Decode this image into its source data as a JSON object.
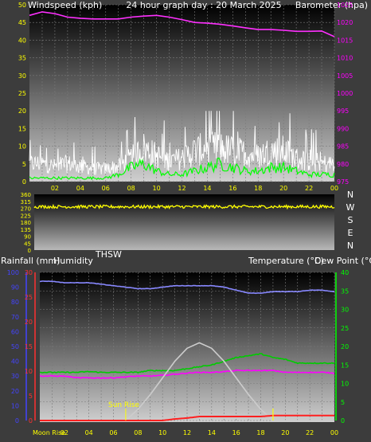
{
  "chart_data": [
    {
      "type": "line",
      "title": "24 hour graph day : 20 March 2025",
      "ylabel": "Windspeed (kph)",
      "y2label": "Barometer (hpa)",
      "ylim": [
        0,
        50
      ],
      "y2lim": [
        975,
        1025
      ],
      "grid": true,
      "x_ticks": [
        "02",
        "04",
        "06",
        "08",
        "10",
        "12",
        "14",
        "16",
        "18",
        "20",
        "22",
        "00"
      ],
      "y_ticks": [
        0,
        5,
        10,
        15,
        20,
        25,
        30,
        35,
        40,
        45,
        50
      ],
      "y2_ticks": [
        975,
        980,
        985,
        990,
        995,
        1000,
        1005,
        1010,
        1015,
        1020,
        1025
      ],
      "hours": [
        0,
        1,
        2,
        3,
        4,
        5,
        6,
        7,
        8,
        9,
        10,
        11,
        12,
        13,
        14,
        15,
        16,
        17,
        18,
        19,
        20,
        21,
        22,
        23,
        24
      ],
      "series": [
        {
          "role": "barometer",
          "color": "#ff30ff",
          "axis": "right",
          "values": [
            1022,
            1023,
            1022.5,
            1021.5,
            1021.2,
            1021,
            1021,
            1021,
            1021.5,
            1021.8,
            1022,
            1021.5,
            1020.8,
            1020,
            1019.8,
            1019.5,
            1019,
            1018.5,
            1018,
            1018,
            1017.8,
            1017.5,
            1017.5,
            1017.6,
            1016
          ]
        },
        {
          "role": "gust",
          "color": "#ffffff",
          "axis": "left",
          "values": [
            7,
            7,
            6,
            7,
            6,
            5,
            5,
            6,
            9,
            13,
            10,
            8,
            9,
            12,
            13,
            13,
            12,
            11,
            10,
            12,
            12,
            9,
            8,
            7,
            7
          ],
          "spike_max": 20
        },
        {
          "role": "average",
          "color": "#00ff00",
          "axis": "left",
          "values": [
            1,
            1,
            1,
            1,
            1,
            1,
            1,
            2,
            4,
            5,
            3,
            2,
            2,
            3,
            4,
            5,
            4,
            3,
            3,
            4,
            4,
            3,
            2,
            2,
            2
          ]
        }
      ]
    },
    {
      "type": "line",
      "ylim": [
        0,
        360
      ],
      "y_ticks": [
        0,
        45,
        90,
        135,
        180,
        225,
        270,
        315,
        360
      ],
      "compass_labels": [
        "N",
        "W",
        "S",
        "E",
        "N"
      ],
      "series": [
        {
          "role": "wind-direction",
          "color": "#ffff00",
          "base_value": 280,
          "jitter": 20
        }
      ]
    },
    {
      "type": "line",
      "ylabel_left_outer": "Rainfall (mm)",
      "ylabel_left_inner": "Humidity",
      "series_label_thsw": "THSW",
      "ylabel_right_outer": "Temperature (°C)",
      "ylabel_right_inner": "Dew Point (°C)",
      "grid": true,
      "x_ticks": [
        "02",
        "04",
        "06",
        "08",
        "10",
        "12",
        "14",
        "16",
        "18",
        "20",
        "22",
        "00"
      ],
      "humidity_lim": [
        0,
        100
      ],
      "humidity_ticks": [
        0,
        10,
        20,
        30,
        40,
        50,
        60,
        70,
        80,
        90,
        100
      ],
      "rain_lim": [
        0,
        30
      ],
      "rain_ticks": [
        0,
        5,
        10,
        15,
        20,
        25,
        30
      ],
      "temp_lim": [
        0,
        40
      ],
      "temp_ticks": [
        0,
        5,
        10,
        15,
        20,
        25,
        30,
        35,
        40
      ],
      "annotations": {
        "sunrise": "Sun Rise",
        "moonrise": "Moon Rise"
      },
      "sunrise_hour": 7,
      "sunset_hour": 19,
      "hours": [
        0,
        1,
        2,
        3,
        4,
        5,
        6,
        7,
        8,
        9,
        10,
        11,
        12,
        13,
        14,
        15,
        16,
        17,
        18,
        19,
        20,
        21,
        22,
        23,
        24
      ],
      "series": [
        {
          "role": "humidity",
          "color": "#8888ff",
          "axis": "humidity",
          "values": [
            94,
            94,
            93,
            93,
            93,
            92,
            91,
            90,
            89,
            89,
            90,
            91,
            91,
            91,
            91,
            90,
            88,
            86,
            86,
            87,
            87,
            87,
            88,
            88,
            87
          ]
        },
        {
          "role": "temperature",
          "color": "#00cc00",
          "axis": "temp",
          "values": [
            13,
            13,
            13,
            13,
            13.2,
            13,
            13,
            13,
            13,
            13.5,
            13.5,
            13.5,
            14,
            14.5,
            15,
            16,
            17,
            17.5,
            18,
            17,
            16.5,
            15.5,
            15.5,
            15.5,
            15.5
          ]
        },
        {
          "role": "dew-point",
          "color": "#ff00ff",
          "axis": "temp",
          "values": [
            12,
            12,
            12,
            11.5,
            11.5,
            11.5,
            11.5,
            11.8,
            12,
            12,
            12.2,
            12.5,
            12.8,
            13,
            13,
            13.2,
            13.5,
            13.5,
            13.5,
            13.5,
            13,
            13,
            13,
            13,
            12.8
          ]
        },
        {
          "role": "solar",
          "color": "#cccccc",
          "axis": "temp",
          "values": [
            0,
            0,
            0,
            0,
            0,
            0,
            0,
            0,
            3,
            7,
            11.5,
            16,
            19.5,
            21,
            19.5,
            16,
            11.5,
            7,
            3,
            0,
            0,
            0,
            0,
            0,
            0
          ]
        },
        {
          "role": "rainfall",
          "color": "#ff2020",
          "axis": "rain",
          "values": [
            0,
            0,
            0,
            0,
            0,
            0,
            0,
            0,
            0,
            0,
            0,
            0.3,
            0.5,
            0.8,
            0.8,
            0.8,
            0.8,
            0.8,
            0.8,
            1,
            1,
            1,
            1,
            1,
            1
          ]
        }
      ]
    }
  ],
  "colors": {
    "left_axis_text": "#ffff00",
    "humidity_axis": "#4444ff",
    "rain_axis": "#ff3030",
    "temp_axis": "#00ff00",
    "barometer_axis": "#ff00ff",
    "annotation": "#ffff00"
  }
}
